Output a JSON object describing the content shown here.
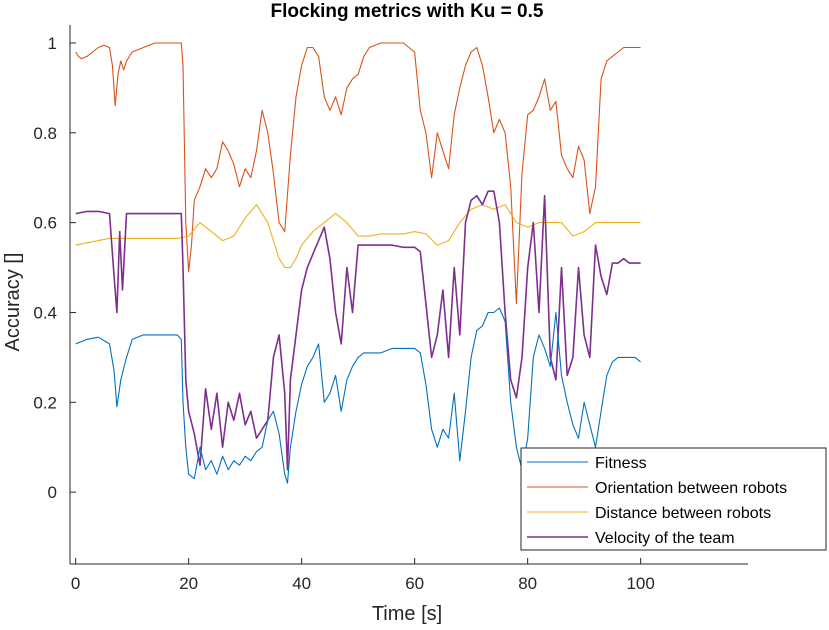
{
  "chart_data": {
    "type": "line",
    "title": "Flocking metrics with Ku = 0.5",
    "xlabel": "Time [s]",
    "ylabel": "Accuracy []",
    "xlim": [
      -1,
      119
    ],
    "ylim": [
      -0.16,
      1.04
    ],
    "xticks": [
      0,
      20,
      40,
      60,
      80,
      100
    ],
    "xtick_labels": [
      "0",
      "20",
      "40",
      "60",
      "80",
      "100"
    ],
    "yticks": [
      0,
      0.2,
      0.4,
      0.6,
      0.8,
      1
    ],
    "ytick_labels": [
      "0",
      "0.2",
      "0.4",
      "0.6",
      "0.8",
      "1"
    ],
    "grid": false,
    "legend_position": "bottom-right",
    "series": [
      {
        "name": "Fitness",
        "color": "#0072BD",
        "x": [
          0,
          2,
          4,
          6,
          6.8,
          7.3,
          8,
          9,
          10,
          12,
          14,
          16,
          18,
          18.7,
          19,
          19.5,
          20,
          21,
          22,
          23,
          24,
          25,
          26,
          27,
          28,
          29,
          30,
          31,
          32,
          33,
          34,
          35,
          36,
          37,
          37.5,
          38,
          39,
          40,
          41,
          42,
          43,
          44,
          45,
          46,
          47,
          48,
          49,
          50,
          51,
          52,
          54,
          56,
          58,
          60,
          61,
          62,
          63,
          64,
          65,
          66,
          67,
          68,
          69,
          70,
          71,
          72,
          73,
          74,
          75,
          76,
          77,
          78,
          79,
          80,
          81,
          82,
          83,
          84,
          85,
          86,
          87,
          88,
          89,
          90,
          91,
          92,
          93,
          94,
          95,
          96,
          97,
          98,
          99,
          100
        ],
        "y": [
          0.33,
          0.34,
          0.345,
          0.33,
          0.27,
          0.19,
          0.25,
          0.3,
          0.34,
          0.35,
          0.35,
          0.35,
          0.35,
          0.34,
          0.2,
          0.1,
          0.04,
          0.03,
          0.1,
          0.05,
          0.07,
          0.04,
          0.08,
          0.05,
          0.07,
          0.06,
          0.08,
          0.07,
          0.09,
          0.1,
          0.16,
          0.18,
          0.13,
          0.04,
          0.02,
          0.1,
          0.18,
          0.24,
          0.28,
          0.3,
          0.33,
          0.2,
          0.22,
          0.26,
          0.18,
          0.25,
          0.28,
          0.3,
          0.31,
          0.31,
          0.31,
          0.32,
          0.32,
          0.32,
          0.31,
          0.24,
          0.14,
          0.1,
          0.14,
          0.12,
          0.22,
          0.07,
          0.18,
          0.3,
          0.36,
          0.37,
          0.4,
          0.4,
          0.41,
          0.38,
          0.2,
          0.1,
          0.05,
          0.12,
          0.3,
          0.35,
          0.32,
          0.28,
          0.4,
          0.26,
          0.2,
          0.15,
          0.12,
          0.2,
          0.15,
          0.1,
          0.18,
          0.26,
          0.29,
          0.3,
          0.3,
          0.3,
          0.3,
          0.29
        ]
      },
      {
        "name": "Orientation between robots",
        "color": "#D95319",
        "x": [
          0,
          0.5,
          1,
          2,
          3,
          4,
          5,
          6,
          6.5,
          7,
          7.5,
          8,
          8.5,
          9,
          10,
          12,
          14,
          16,
          18,
          18.7,
          19,
          19.5,
          20,
          20.5,
          21,
          22,
          23,
          24,
          25,
          26,
          27,
          28,
          29,
          30,
          31,
          32,
          33,
          34,
          35,
          36,
          37,
          38,
          39,
          40,
          41,
          42,
          43,
          44,
          45,
          46,
          47,
          48,
          49,
          50,
          51,
          52,
          54,
          56,
          58,
          60,
          61,
          62,
          63,
          64,
          65,
          66,
          67,
          68,
          69,
          70,
          71,
          72,
          73,
          74,
          75,
          76,
          77,
          78,
          79,
          80,
          81,
          82,
          83,
          84,
          85,
          86,
          87,
          88,
          89,
          90,
          91,
          92,
          93,
          94,
          95,
          96,
          97,
          98,
          99,
          100
        ],
        "y": [
          0.98,
          0.97,
          0.965,
          0.97,
          0.98,
          0.99,
          0.995,
          0.99,
          0.95,
          0.86,
          0.93,
          0.96,
          0.94,
          0.96,
          0.98,
          0.99,
          1.0,
          1.0,
          1.0,
          1.0,
          0.95,
          0.6,
          0.49,
          0.55,
          0.65,
          0.68,
          0.72,
          0.7,
          0.72,
          0.78,
          0.76,
          0.73,
          0.68,
          0.72,
          0.7,
          0.76,
          0.85,
          0.8,
          0.71,
          0.6,
          0.58,
          0.75,
          0.88,
          0.95,
          0.99,
          0.99,
          0.97,
          0.88,
          0.85,
          0.88,
          0.84,
          0.9,
          0.92,
          0.93,
          0.97,
          0.99,
          1.0,
          1.0,
          1.0,
          0.98,
          0.85,
          0.8,
          0.7,
          0.8,
          0.76,
          0.72,
          0.84,
          0.9,
          0.95,
          0.98,
          0.99,
          0.95,
          0.88,
          0.8,
          0.83,
          0.8,
          0.68,
          0.42,
          0.71,
          0.84,
          0.85,
          0.88,
          0.92,
          0.85,
          0.87,
          0.75,
          0.72,
          0.7,
          0.77,
          0.74,
          0.62,
          0.68,
          0.92,
          0.96,
          0.97,
          0.98,
          0.99,
          0.99,
          0.99,
          0.99
        ]
      },
      {
        "name": "Distance between robots",
        "color": "#EDB120",
        "x": [
          0,
          2,
          4,
          6,
          8,
          10,
          12,
          14,
          16,
          18,
          20,
          22,
          24,
          26,
          28,
          30,
          32,
          34,
          35,
          36,
          37,
          38,
          39,
          40,
          42,
          44,
          46,
          48,
          50,
          52,
          54,
          56,
          58,
          60,
          62,
          64,
          66,
          68,
          70,
          72,
          74,
          76,
          78,
          80,
          82,
          84,
          86,
          88,
          90,
          92,
          94,
          96,
          98,
          100
        ],
        "y": [
          0.55,
          0.555,
          0.56,
          0.565,
          0.565,
          0.565,
          0.565,
          0.565,
          0.565,
          0.565,
          0.57,
          0.6,
          0.58,
          0.56,
          0.57,
          0.61,
          0.64,
          0.6,
          0.56,
          0.52,
          0.5,
          0.5,
          0.52,
          0.55,
          0.58,
          0.6,
          0.62,
          0.6,
          0.57,
          0.57,
          0.575,
          0.575,
          0.575,
          0.58,
          0.575,
          0.55,
          0.56,
          0.6,
          0.63,
          0.64,
          0.63,
          0.64,
          0.6,
          0.59,
          0.6,
          0.6,
          0.6,
          0.57,
          0.58,
          0.6,
          0.6,
          0.6,
          0.6,
          0.6
        ]
      },
      {
        "name": "Velocity of the team",
        "color": "#7E2F8E",
        "x": [
          0,
          2,
          4,
          6,
          6.8,
          7.3,
          7.8,
          8.3,
          9,
          10,
          12,
          14,
          16,
          18,
          18.7,
          19,
          19.5,
          20,
          21,
          22,
          23,
          24,
          25,
          26,
          27,
          28,
          29,
          30,
          31,
          32,
          33,
          34,
          35,
          36,
          37,
          37.5,
          38,
          39,
          40,
          41,
          42,
          43,
          44,
          45,
          46,
          47,
          48,
          49,
          50,
          52,
          54,
          56,
          58,
          60,
          61,
          62,
          63,
          64,
          65,
          66,
          67,
          68,
          69,
          70,
          71,
          72,
          73,
          74,
          75,
          76,
          77,
          78,
          79,
          80,
          81,
          82,
          83,
          84,
          85,
          86,
          87,
          88,
          89,
          90,
          91,
          92,
          93,
          94,
          95,
          96,
          97,
          98,
          99,
          100
        ],
        "y": [
          0.62,
          0.625,
          0.625,
          0.62,
          0.48,
          0.4,
          0.58,
          0.45,
          0.62,
          0.62,
          0.62,
          0.62,
          0.62,
          0.62,
          0.62,
          0.5,
          0.25,
          0.18,
          0.13,
          0.06,
          0.23,
          0.14,
          0.22,
          0.1,
          0.2,
          0.16,
          0.22,
          0.15,
          0.18,
          0.12,
          0.14,
          0.16,
          0.3,
          0.35,
          0.22,
          0.05,
          0.25,
          0.35,
          0.45,
          0.5,
          0.53,
          0.56,
          0.59,
          0.52,
          0.4,
          0.33,
          0.5,
          0.4,
          0.55,
          0.55,
          0.55,
          0.55,
          0.545,
          0.545,
          0.535,
          0.42,
          0.3,
          0.35,
          0.45,
          0.3,
          0.5,
          0.35,
          0.6,
          0.65,
          0.66,
          0.64,
          0.67,
          0.67,
          0.6,
          0.4,
          0.25,
          0.21,
          0.3,
          0.5,
          0.6,
          0.4,
          0.66,
          0.3,
          0.25,
          0.5,
          0.26,
          0.3,
          0.5,
          0.35,
          0.3,
          0.55,
          0.48,
          0.44,
          0.51,
          0.51,
          0.52,
          0.51,
          0.51,
          0.51
        ]
      }
    ]
  }
}
